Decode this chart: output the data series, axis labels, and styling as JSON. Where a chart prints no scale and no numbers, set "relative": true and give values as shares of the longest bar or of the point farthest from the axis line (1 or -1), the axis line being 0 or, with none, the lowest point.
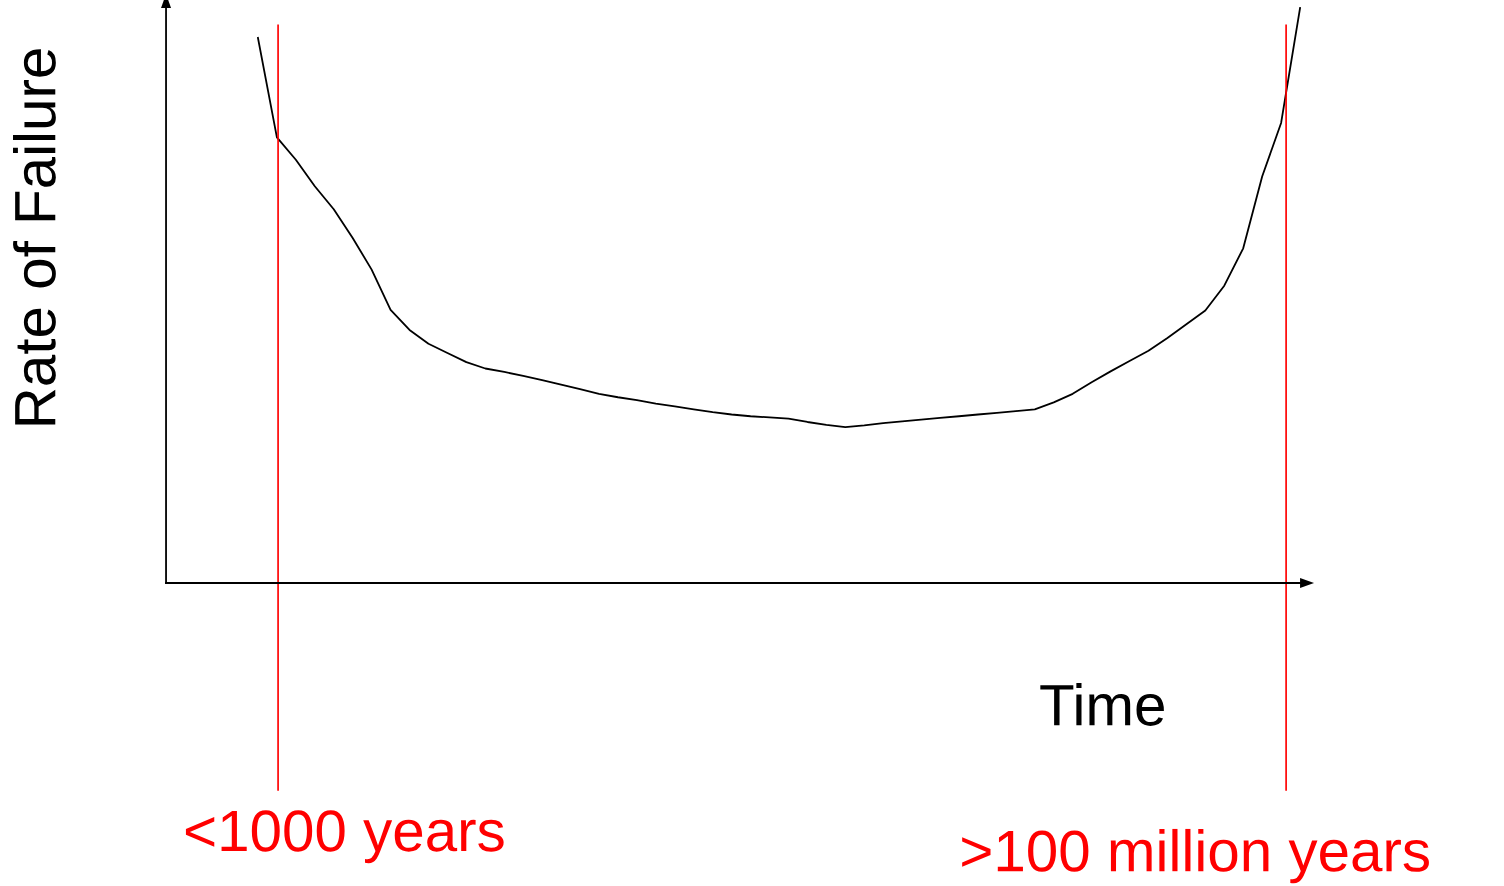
{
  "chart_data": {
    "type": "line",
    "relative": true,
    "xlabel": "Time",
    "ylabel": "Rate of Failure",
    "marker": "none",
    "line_style": "solid",
    "categories": [
      null,
      null,
      null,
      null,
      null,
      null,
      null,
      null,
      null,
      null,
      null,
      null,
      null,
      null,
      null,
      null,
      null,
      null,
      null,
      null,
      null,
      null,
      null,
      null,
      null,
      null,
      null,
      null,
      null,
      null,
      null,
      null,
      null,
      null,
      null,
      null,
      null,
      null,
      null,
      null,
      null,
      null,
      null,
      null,
      null,
      null,
      null,
      null,
      null,
      null,
      null,
      null,
      null,
      null,
      null,
      null
    ],
    "annotations": [
      "<1000 years",
      ">100 million years"
    ],
    "series": [
      {
        "color": "#000000",
        "values": [
          0.948,
          0.775,
          0.736,
          0.69,
          0.65,
          0.6,
          0.545,
          0.475,
          0.44,
          0.416,
          0.4,
          0.384,
          0.373,
          0.367,
          0.36,
          0.353,
          0.345,
          0.337,
          0.329,
          0.323,
          0.318,
          0.312,
          0.307,
          0.302,
          0.297,
          0.293,
          0.29,
          0.288,
          0.286,
          0.28,
          0.275,
          0.271,
          0.274,
          0.278,
          0.281,
          0.284,
          0.287,
          0.29,
          0.293,
          0.296,
          0.299,
          0.302,
          0.314,
          0.329,
          0.349,
          0.368,
          0.386,
          0.404,
          0.426,
          0.45,
          0.474,
          0.517,
          0.582,
          0.707,
          0.8,
          1.0
        ]
      }
    ]
  }
}
